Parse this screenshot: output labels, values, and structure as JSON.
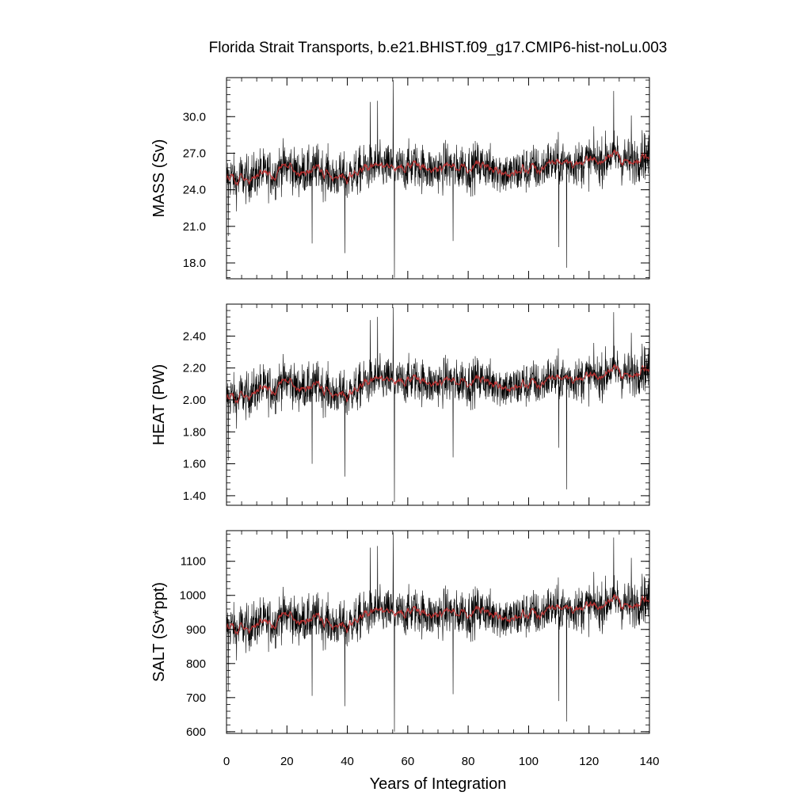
{
  "chart_data": {
    "type": "line",
    "title": "Florida Strait Transports, b.e21.BHIST.f09_g17.CMIP6-hist-noLu.003",
    "xlabel": "Years of Integration",
    "xlim": [
      0,
      140
    ],
    "x_ticks": [
      0,
      20,
      40,
      60,
      80,
      100,
      120,
      140
    ],
    "x_tick_labels": [
      "0",
      "20",
      "40",
      "60",
      "80",
      "100",
      "120",
      "140"
    ],
    "grid": false,
    "series_style": {
      "raw_color": "#000000",
      "smoothed_color": "#c83232"
    },
    "panels": [
      {
        "id": "mass",
        "ylabel": "MASS (Sv)",
        "ylim": [
          16.7,
          33.2
        ],
        "y_ticks": [
          18,
          21,
          24,
          27,
          30
        ],
        "y_tick_labels": [
          "18.0",
          "21.0",
          "24.0",
          "27.0",
          "30.0"
        ],
        "mean_level": 25.6,
        "variability": 1.35,
        "trend": [
          [
            0,
            24.8
          ],
          [
            10,
            25.6
          ],
          [
            20,
            25.7
          ],
          [
            40,
            25.3
          ],
          [
            50,
            25.8
          ],
          [
            60,
            25.6
          ],
          [
            100,
            25.7
          ],
          [
            120,
            26.3
          ],
          [
            140,
            26.8
          ]
        ],
        "extremes": [
          [
            0.6,
            20.2
          ],
          [
            28.3,
            19.6
          ],
          [
            39.2,
            18.8
          ],
          [
            47.6,
            31.2
          ],
          [
            50.0,
            31.3
          ],
          [
            55.2,
            33.0
          ],
          [
            55.6,
            16.8
          ],
          [
            75.0,
            19.8
          ],
          [
            110.0,
            19.3
          ],
          [
            112.6,
            17.6
          ],
          [
            128.2,
            32.1
          ],
          [
            134.0,
            30.1
          ]
        ]
      },
      {
        "id": "heat",
        "ylabel": "HEAT (PW)",
        "ylim": [
          1.34,
          2.6
        ],
        "y_ticks": [
          1.4,
          1.6,
          1.8,
          2.0,
          2.2,
          2.4
        ],
        "y_tick_labels": [
          "1.40",
          "1.60",
          "1.80",
          "2.00",
          "2.20",
          "2.40"
        ],
        "mean_level": 2.06,
        "variability": 0.1,
        "trend": [
          [
            0,
            2.0
          ],
          [
            10,
            2.09
          ],
          [
            20,
            2.1
          ],
          [
            40,
            2.05
          ],
          [
            50,
            2.12
          ],
          [
            60,
            2.1
          ],
          [
            100,
            2.1
          ],
          [
            120,
            2.14
          ],
          [
            140,
            2.2
          ]
        ],
        "extremes": [
          [
            0.6,
            1.62
          ],
          [
            28.3,
            1.6
          ],
          [
            39.2,
            1.52
          ],
          [
            47.6,
            2.5
          ],
          [
            50.0,
            2.52
          ],
          [
            55.2,
            2.58
          ],
          [
            55.6,
            1.36
          ],
          [
            75.0,
            1.64
          ],
          [
            110.0,
            1.7
          ],
          [
            112.6,
            1.44
          ],
          [
            128.2,
            2.55
          ],
          [
            134.0,
            2.42
          ]
        ]
      },
      {
        "id": "salt",
        "ylabel": "SALT (Sv*ppt)",
        "ylim": [
          595,
          1190
        ],
        "y_ticks": [
          600,
          700,
          800,
          900,
          1000,
          1100
        ],
        "y_tick_labels": [
          "600",
          "700",
          "800",
          "900",
          "1000",
          "1100"
        ],
        "mean_level": 930,
        "variability": 48,
        "trend": [
          [
            0,
            900
          ],
          [
            10,
            930
          ],
          [
            20,
            935
          ],
          [
            40,
            920
          ],
          [
            50,
            950
          ],
          [
            60,
            940
          ],
          [
            100,
            945
          ],
          [
            120,
            965
          ],
          [
            140,
            990
          ]
        ],
        "extremes": [
          [
            0.6,
            720
          ],
          [
            28.3,
            705
          ],
          [
            39.2,
            675
          ],
          [
            47.6,
            1140
          ],
          [
            50.0,
            1145
          ],
          [
            55.2,
            1185
          ],
          [
            55.6,
            600
          ],
          [
            75.0,
            710
          ],
          [
            110.0,
            690
          ],
          [
            112.6,
            630
          ],
          [
            128.2,
            1170
          ],
          [
            134.0,
            1110
          ]
        ]
      }
    ]
  }
}
